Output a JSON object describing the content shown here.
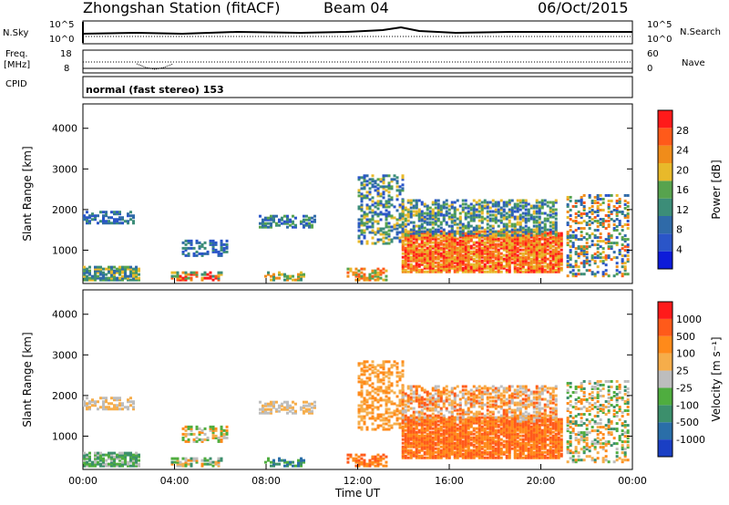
{
  "header": {
    "station_title": "Zhongshan Station (fitACF)",
    "beam": "Beam 04",
    "date": "06/Oct/2015"
  },
  "top_panels": {
    "nsky_label": "N.Sky",
    "freq_label_line1": "Freq.",
    "freq_label_line2": "[MHz]",
    "cpid_label": "CPID",
    "nsearch_label": "N.Search",
    "nave_label": "Nave",
    "noise_ticks_left": [
      "10^5",
      "10^0"
    ],
    "noise_ticks_right": [
      "10^5",
      "10^0"
    ],
    "freq_ticks": [
      "18",
      "8"
    ],
    "nave_ticks": [
      "60",
      "0"
    ],
    "cpid_text": "normal (fast stereo) 153"
  },
  "colors": {
    "power_scale": [
      "#0d1bd9",
      "#2a55c8",
      "#2f6aa8",
      "#3c8d78",
      "#57a34e",
      "#e8b92a",
      "#f08c1a",
      "#ff5a1a",
      "#ff1a1a"
    ],
    "velocity_scale": [
      "#1a3fc4",
      "#2a6ea8",
      "#3c8f6c",
      "#4fad3f",
      "#bdbdbd",
      "#f6ad4a",
      "#ff8a1a",
      "#ff5a1a",
      "#ff1a1a"
    ]
  },
  "chart_data": [
    {
      "type": "heatmap",
      "name": "power",
      "ylabel": "Slant Range [km]",
      "xlabel": "",
      "ylim": [
        180,
        4600
      ],
      "y_ticks": [
        "4000",
        "3000",
        "2000",
        "1000"
      ],
      "colorbar_label": "Power [dB]",
      "colorbar_ticks": [
        "28",
        "24",
        "20",
        "16",
        "12",
        "8",
        "4"
      ],
      "colorbar_range": [
        0,
        32
      ]
    },
    {
      "type": "heatmap",
      "name": "velocity",
      "ylabel": "Slant Range [km]",
      "xlabel": "Time UT",
      "ylim": [
        180,
        4600
      ],
      "y_ticks": [
        "4000",
        "3000",
        "2000",
        "1000"
      ],
      "x_ticks": [
        "00:00",
        "04:00",
        "08:00",
        "12:00",
        "16:00",
        "20:00",
        "00:00"
      ],
      "colorbar_label": "Velocity [m s⁻¹]",
      "colorbar_ticks": [
        "1000",
        "500",
        "100",
        "25",
        "-25",
        "-100",
        "-500",
        "-1000"
      ]
    }
  ]
}
